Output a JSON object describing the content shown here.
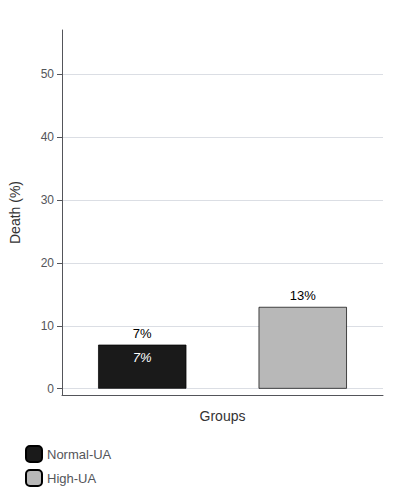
{
  "chart_data": {
    "type": "bar",
    "categories": [
      "Normal-UA",
      "High-UA"
    ],
    "series": [
      {
        "name": "Normal-UA",
        "color": "#1a1a1a",
        "values": [
          7,
          null
        ],
        "value_labels": [
          "7%",
          null
        ]
      },
      {
        "name": "High-UA",
        "color": "#b8b8b8",
        "values": [
          null,
          13
        ],
        "value_labels": [
          null,
          "13%"
        ]
      }
    ],
    "xlabel": "Groups",
    "ylabel": "Death (%)",
    "ylim": [
      -1,
      57
    ],
    "yticks": [
      0,
      10,
      20,
      30,
      40,
      50
    ],
    "grid": true,
    "legend": "lower left",
    "data_labels": true,
    "tick_labels": "y",
    "annotations": [
      {
        "text": "7%",
        "category": "Normal-UA",
        "y": 7
      }
    ]
  }
}
